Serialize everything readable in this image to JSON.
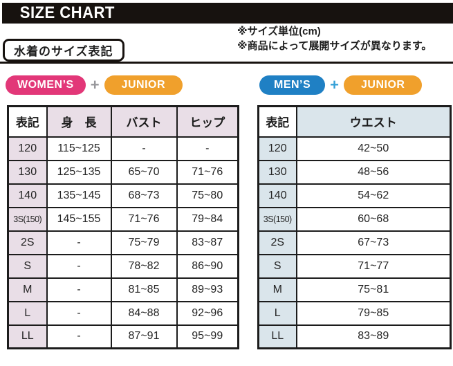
{
  "title": "SIZE CHART",
  "notes": {
    "unit": "※サイズ単位(cm)",
    "availability": "※商品によって展開サイズが異なります。"
  },
  "section_label": "水着のサイズ表記",
  "women": {
    "badge_left": "WOMEN’S",
    "plus": "+",
    "badge_right": "JUNIOR",
    "table": {
      "headers": [
        "表記",
        "身　長",
        "バスト",
        "ヒップ"
      ],
      "rows": [
        [
          "120",
          "115~125",
          "-",
          "-"
        ],
        [
          "130",
          "125~135",
          "65~70",
          "71~76"
        ],
        [
          "140",
          "135~145",
          "68~73",
          "75~80"
        ],
        [
          "3S(150)",
          "145~155",
          "71~76",
          "79~84"
        ],
        [
          "2S",
          "-",
          "75~79",
          "83~87"
        ],
        [
          "S",
          "-",
          "78~82",
          "86~90"
        ],
        [
          "M",
          "-",
          "81~85",
          "89~93"
        ],
        [
          "L",
          "-",
          "84~88",
          "92~96"
        ],
        [
          "LL",
          "-",
          "87~91",
          "95~99"
        ]
      ]
    }
  },
  "men": {
    "badge_left": "MEN’S",
    "plus": "+",
    "badge_right": "JUNIOR",
    "table": {
      "headers": [
        "表記",
        "ウエスト"
      ],
      "rows": [
        [
          "120",
          "42~50"
        ],
        [
          "130",
          "48~56"
        ],
        [
          "140",
          "54~62"
        ],
        [
          "3S(150)",
          "60~68"
        ],
        [
          "2S",
          "67~73"
        ],
        [
          "S",
          "71~77"
        ],
        [
          "M",
          "75~81"
        ],
        [
          "L",
          "79~85"
        ],
        [
          "LL",
          "83~89"
        ]
      ]
    }
  },
  "colors": {
    "title_bar": "#17120f",
    "womens_badge": "#e23778",
    "mens_badge": "#1f80c4",
    "junior_badge": "#f0a02c",
    "women_tint": "#e9dee7",
    "men_tint": "#dae5eb"
  }
}
